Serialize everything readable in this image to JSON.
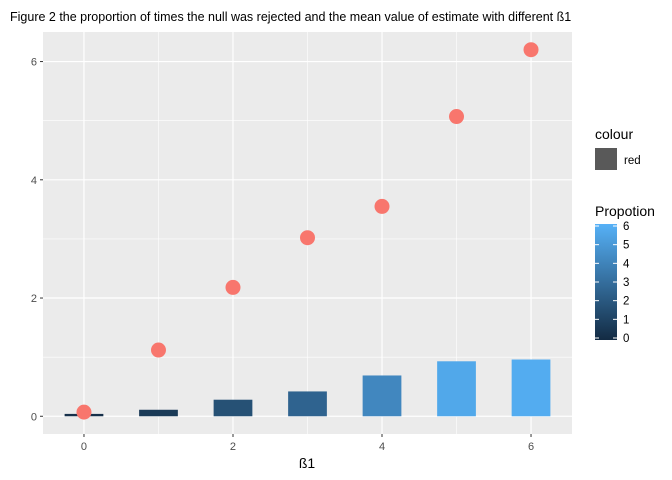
{
  "chart_data": {
    "type": "bar",
    "title": "Figure 2 the proportion of times the null was rejected and the mean value of estimate with different ß1",
    "xlabel": "ß1",
    "ylabel": "",
    "x": [
      0,
      1,
      2,
      3,
      4,
      5,
      6
    ],
    "xlim": [
      -0.55,
      6.55
    ],
    "ylim": [
      -0.3,
      6.5
    ],
    "x_ticks": [
      "0",
      "2",
      "4",
      "6"
    ],
    "y_ticks": [
      "0",
      "2",
      "4",
      "6"
    ],
    "grid": true,
    "series": [
      {
        "kind": "bar",
        "values": [
          0.04,
          0.11,
          0.28,
          0.42,
          0.69,
          0.93,
          0.96
        ],
        "fill_scale": "Propotion"
      },
      {
        "kind": "point",
        "values": [
          0.07,
          1.12,
          2.18,
          3.02,
          3.55,
          5.07,
          6.2
        ],
        "color": "#F8766D"
      }
    ],
    "legends": [
      {
        "title": "colour",
        "type": "key",
        "items": [
          {
            "label": "red",
            "color": "#595959"
          }
        ],
        "placement": "right"
      },
      {
        "title": "Propotion",
        "type": "colorbar",
        "range": [
          0,
          6
        ],
        "breaks": [
          "0",
          "1",
          "2",
          "3",
          "4",
          "5",
          "6"
        ],
        "low_color": "#132B43",
        "high_color": "#56B1F7",
        "placement": "right"
      }
    ],
    "colors": {
      "panel": "#EBEBEB",
      "grid": "#FFFFFF",
      "bar_low": "#132B43",
      "bar_high": "#56B1F7",
      "point": "#F8766D"
    }
  }
}
